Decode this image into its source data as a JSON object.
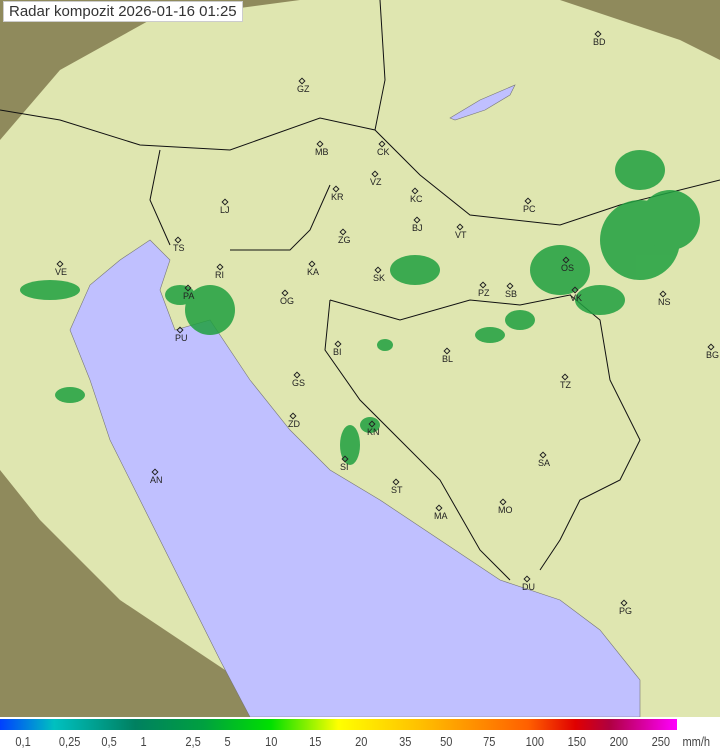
{
  "title": "Radar kompozit  2026-01-16   01:25",
  "legend": {
    "labels": [
      "0,1",
      "0,25",
      "0,5",
      "1",
      "2,5",
      "5",
      "10",
      "15",
      "20",
      "35",
      "50",
      "75",
      "100",
      "150",
      "200",
      "250"
    ],
    "unit": "mm/h"
  },
  "colors": {
    "land": "#dfe6b0",
    "sea": "#c0c0ff",
    "outside": "#8f8a5c",
    "rain": "#20a040"
  },
  "cities": [
    "GZ",
    "BD",
    "MB",
    "CK",
    "VZ",
    "KR",
    "KC",
    "PC",
    "LJ",
    "ZG",
    "BJ",
    "VT",
    "TS",
    "VE",
    "RI",
    "KA",
    "SK",
    "PZ",
    "SB",
    "OS",
    "VK",
    "NS",
    "PA",
    "OG",
    "PU",
    "BI",
    "BL",
    "BG",
    "GS",
    "TZ",
    "ZD",
    "KN",
    "SA",
    "AN",
    "SI",
    "ST",
    "MA",
    "MO",
    "DU",
    "PG"
  ]
}
